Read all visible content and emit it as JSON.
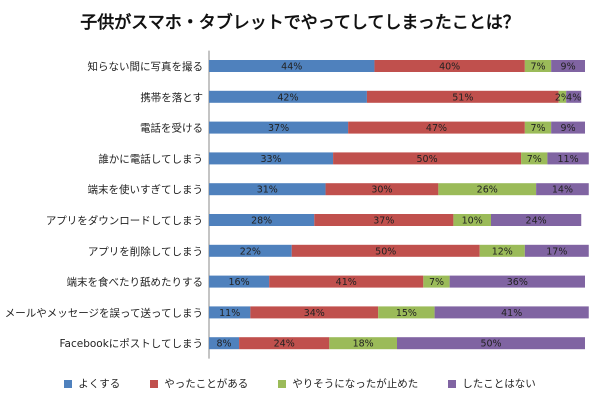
{
  "chart_data": {
    "type": "bar",
    "orientation": "horizontal-stacked-100",
    "title": "子供がスマホ・タブレットでやってしてしまったことは？",
    "categories": [
      "知らない間に写真を撮る",
      "携帯を落とす",
      "電話を受ける",
      "誰かに電話してしまう",
      "端末を使いすぎてしまう",
      "アプリをダウンロードしてしまう",
      "アプリを削除してしまう",
      "端末を食べたり舐めたりする",
      "メールやメッセージを誤って送ってしまう",
      "Facebookにポストしてしまう"
    ],
    "series": [
      {
        "name": "よくする",
        "color": "#4f81bd",
        "values": [
          44,
          42,
          37,
          33,
          31,
          28,
          22,
          16,
          11,
          8
        ]
      },
      {
        "name": "やったことがある",
        "color": "#c0504d",
        "values": [
          40,
          51,
          47,
          50,
          30,
          37,
          50,
          41,
          34,
          24
        ]
      },
      {
        "name": "やりそうになったが止めた",
        "color": "#9bbb59",
        "values": [
          7,
          2,
          7,
          7,
          26,
          10,
          12,
          7,
          15,
          18
        ]
      },
      {
        "name": "したことはない",
        "color": "#8064a2",
        "values": [
          9,
          4,
          9,
          11,
          14,
          24,
          17,
          36,
          41,
          50
        ]
      }
    ],
    "value_suffix": "%",
    "xlim": [
      0,
      100
    ],
    "grid": false,
    "legend_position": "bottom"
  }
}
